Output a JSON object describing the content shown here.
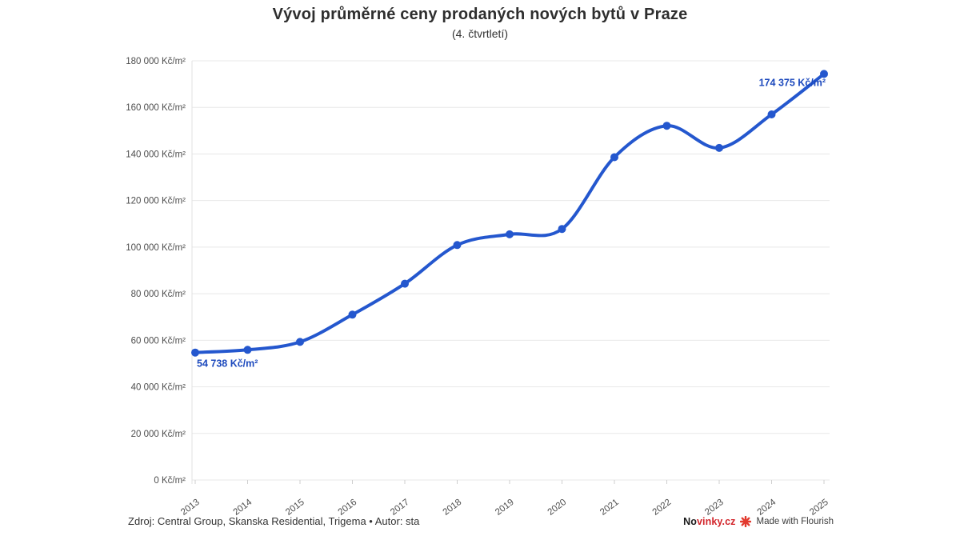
{
  "chart_data": {
    "type": "line",
    "title": "Vývoj průměrné ceny prodaných nových bytů v Praze",
    "subtitle": "(4. čtvrtletí)",
    "x": [
      "2013",
      "2014",
      "2015",
      "2016",
      "2017",
      "2018",
      "2019",
      "2020",
      "2021",
      "2022",
      "2023",
      "2024",
      "2025"
    ],
    "values": [
      54738,
      55900,
      59300,
      71000,
      84300,
      100900,
      105500,
      107800,
      138600,
      152100,
      142600,
      157000,
      174375
    ],
    "unit": "Kč/m²",
    "ylim": [
      0,
      180000
    ],
    "grid": "horizontal",
    "legend": "none",
    "y_ticks": [
      {
        "value": 0,
        "label": "0 Kč/m²"
      },
      {
        "value": 20000,
        "label": "20 000 Kč/m²"
      },
      {
        "value": 40000,
        "label": "40 000 Kč/m²"
      },
      {
        "value": 60000,
        "label": "60 000 Kč/m²"
      },
      {
        "value": 80000,
        "label": "80 000 Kč/m²"
      },
      {
        "value": 100000,
        "label": "100 000 Kč/m²"
      },
      {
        "value": 120000,
        "label": "120 000 Kč/m²"
      },
      {
        "value": 140000,
        "label": "140 000 Kč/m²"
      },
      {
        "value": 160000,
        "label": "160 000 Kč/m²"
      },
      {
        "value": 180000,
        "label": "180 000 Kč/m²"
      }
    ],
    "annotations": {
      "first_point_label": "54 738 Kč/m²",
      "last_point_label": "174 375 Kč/m²"
    },
    "colors": {
      "line": "#2457ce",
      "point": "#2457ce",
      "value_label": "#1c49bd",
      "axis_text": "#4d4d4d",
      "grid_line": "#e8e8e8"
    }
  },
  "footer": {
    "source": "Zdroj: Central Group, Skanska Residential, Trigema • Autor: sta",
    "brand": {
      "prefix": "No",
      "suffix": "vinky.cz",
      "suffix_color": "#d2242a"
    },
    "flourish_icon": "flourish-burst",
    "flourish_icon_color": "#e23a2e",
    "made_with": "Made with Flourish"
  }
}
